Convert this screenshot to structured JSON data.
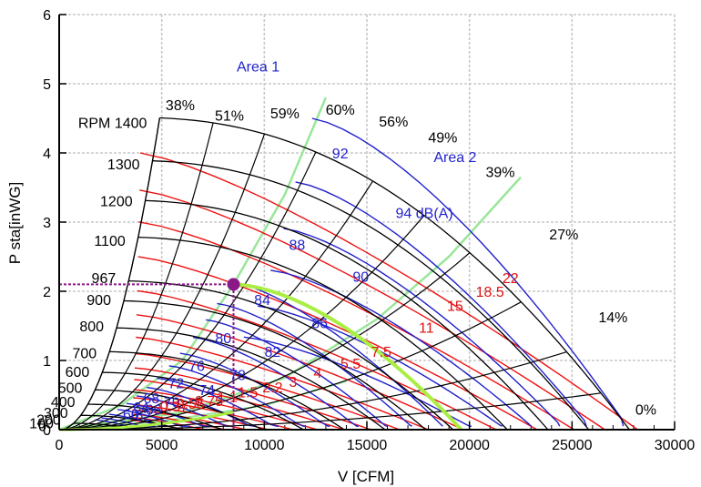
{
  "chart_data": {
    "type": "line",
    "title": "",
    "xlabel": "V [CFM]",
    "ylabel": "P sta[inWG]",
    "xlim": [
      0,
      30000
    ],
    "ylim": [
      0,
      6
    ],
    "xticks": [
      "0",
      "5000",
      "10000",
      "15000",
      "20000",
      "25000",
      "30000"
    ],
    "yticks": [
      "0",
      "1",
      "2",
      "3",
      "4",
      "5",
      "6"
    ],
    "grid": true,
    "rpm_prefix": "RPM",
    "rpm_curves": [
      {
        "label": "1400",
        "rpm": 1400
      },
      {
        "label": "1300",
        "rpm": 1300
      },
      {
        "label": "1200",
        "rpm": 1200
      },
      {
        "label": "1100",
        "rpm": 1100
      },
      {
        "label": "967",
        "rpm": 967
      },
      {
        "label": "900",
        "rpm": 900
      },
      {
        "label": "800",
        "rpm": 800
      },
      {
        "label": "700",
        "rpm": 700
      },
      {
        "label": "600",
        "rpm": 600
      },
      {
        "label": "500",
        "rpm": 500
      },
      {
        "label": "400",
        "rpm": 400
      },
      {
        "label": "300",
        "rpm": 300
      },
      {
        "label": "200",
        "rpm": 200
      },
      {
        "label": "100",
        "rpm": 100
      },
      {
        "label": "0",
        "rpm": 0
      }
    ],
    "efficiency_labels": [
      {
        "label": "38%",
        "x": 5900,
        "y": 4.62
      },
      {
        "label": "51%",
        "x": 8300,
        "y": 4.47
      },
      {
        "label": "59%",
        "x": 11000,
        "y": 4.5
      },
      {
        "label": "60%",
        "x": 13700,
        "y": 4.55
      },
      {
        "label": "56%",
        "x": 16300,
        "y": 4.38
      },
      {
        "label": "49%",
        "x": 18700,
        "y": 4.15
      },
      {
        "label": "39%",
        "x": 21500,
        "y": 3.65
      },
      {
        "label": "27%",
        "x": 24600,
        "y": 2.75
      },
      {
        "label": "14%",
        "x": 27000,
        "y": 1.55
      },
      {
        "label": "0%",
        "x": 28600,
        "y": 0.22
      }
    ],
    "sound_labels": [
      {
        "label": "92",
        "x": 13700,
        "y": 3.92
      },
      {
        "label": "94 dB(A)",
        "x": 17800,
        "y": 3.06
      },
      {
        "label": "88",
        "x": 11600,
        "y": 2.6
      },
      {
        "label": "90",
        "x": 14700,
        "y": 2.14
      },
      {
        "label": "84",
        "x": 9900,
        "y": 1.8
      },
      {
        "label": "86",
        "x": 12700,
        "y": 1.47
      },
      {
        "label": "80",
        "x": 8000,
        "y": 1.25
      },
      {
        "label": "82",
        "x": 10400,
        "y": 1.05
      },
      {
        "label": "76",
        "x": 6700,
        "y": 0.85
      },
      {
        "label": "78",
        "x": 8700,
        "y": 0.72
      },
      {
        "label": "72",
        "x": 5700,
        "y": 0.6
      },
      {
        "label": "74",
        "x": 7200,
        "y": 0.5
      },
      {
        "label": "68",
        "x": 4500,
        "y": 0.38
      },
      {
        "label": "70",
        "x": 5500,
        "y": 0.32
      },
      {
        "label": "64",
        "x": 4000,
        "y": 0.25
      },
      {
        "label": "66",
        "x": 4600,
        "y": 0.22
      },
      {
        "label": "60",
        "x": 3500,
        "y": 0.15
      },
      {
        "label": "62",
        "x": 4100,
        "y": 0.13
      }
    ],
    "power_labels": [
      {
        "label": "22",
        "x": 22000,
        "y": 2.12
      },
      {
        "label": "18.5",
        "x": 21000,
        "y": 1.92
      },
      {
        "label": "15",
        "x": 19300,
        "y": 1.72
      },
      {
        "label": "11",
        "x": 17900,
        "y": 1.4
      },
      {
        "label": "7.5",
        "x": 15700,
        "y": 1.05
      },
      {
        "label": "5.5",
        "x": 14200,
        "y": 0.88
      },
      {
        "label": "4",
        "x": 12600,
        "y": 0.75
      },
      {
        "label": "3",
        "x": 11400,
        "y": 0.62
      },
      {
        "label": "2.2",
        "x": 10400,
        "y": 0.54
      },
      {
        "label": "1.5",
        "x": 9200,
        "y": 0.47
      },
      {
        "label": "1.1",
        "x": 8200,
        "y": 0.4
      },
      {
        "label": "0.75",
        "x": 7300,
        "y": 0.34
      },
      {
        "label": "0.55",
        "x": 6400,
        "y": 0.3
      },
      {
        "label": "0.37",
        "x": 5600,
        "y": 0.26
      }
    ],
    "area_labels": [
      {
        "label": "Area 1",
        "x": 9700,
        "y": 5.18
      },
      {
        "label": "Area 2",
        "x": 19300,
        "y": 3.87
      }
    ],
    "operating_point": {
      "x": 8500,
      "y": 2.1,
      "rpm": 967
    },
    "colors": {
      "rpm": "#000000",
      "sound": "#2020cc",
      "power": "#ee1111",
      "area": "#99e699",
      "system_curve": "#aaee44",
      "operating_point": "#8b1a89",
      "grid": "#c8c8c8"
    }
  }
}
